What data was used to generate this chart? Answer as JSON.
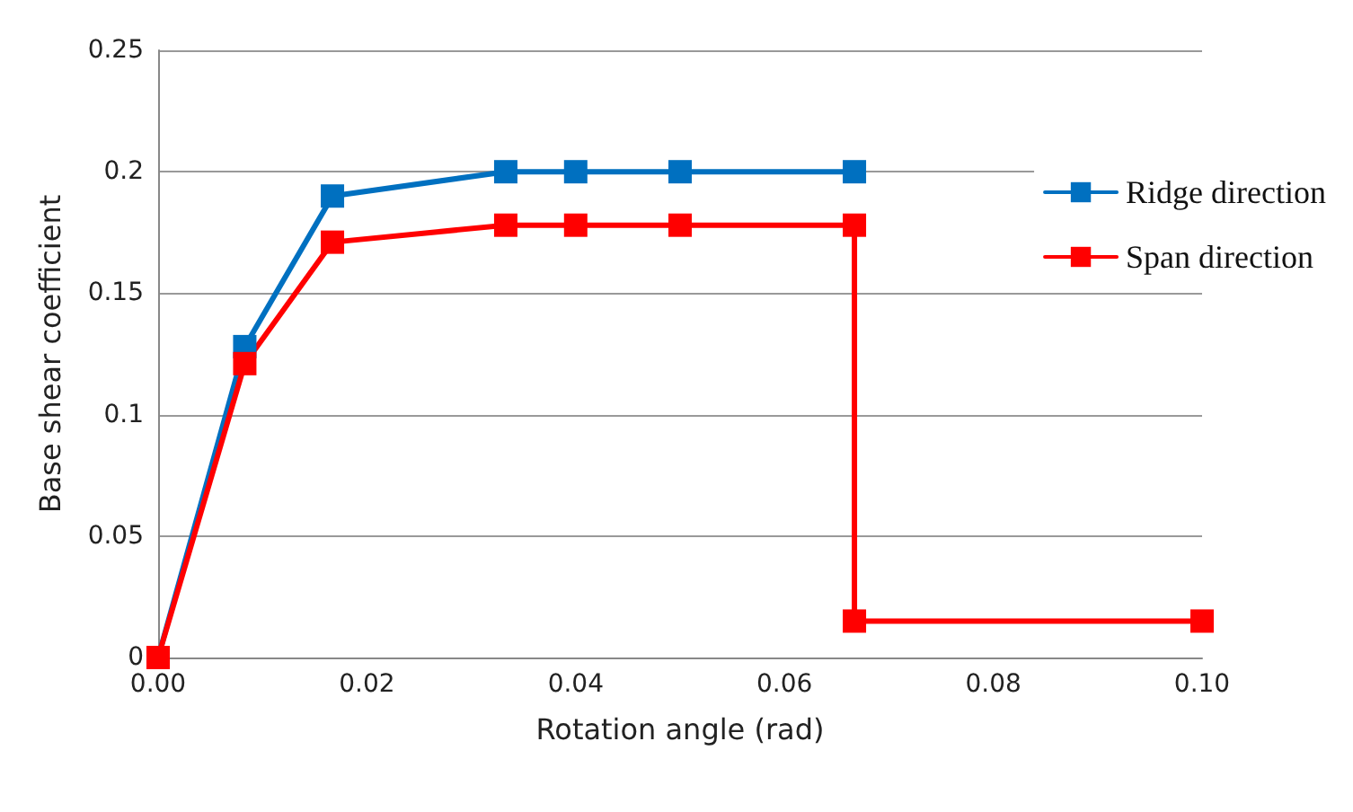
{
  "chart_data": {
    "type": "line",
    "xlabel": "Rotation angle (rad)",
    "ylabel": "Base shear coefficient",
    "series": [
      {
        "name": "Ridge direction",
        "color": "#0070c0",
        "x": [
          0,
          0.0083,
          0.0167,
          0.0333,
          0.04,
          0.05,
          0.0667
        ],
        "values": [
          0,
          0.128,
          0.19,
          0.2,
          0.2,
          0.2,
          0.2
        ]
      },
      {
        "name": "Span direction",
        "color": "#ff0000",
        "x": [
          0,
          0.0083,
          0.0167,
          0.0333,
          0.04,
          0.05,
          0.0667,
          0.0667,
          0.1
        ],
        "values": [
          0,
          0.121,
          0.171,
          0.178,
          0.178,
          0.178,
          0.178,
          0.015,
          0.015
        ]
      }
    ],
    "xlim": [
      0,
      0.1
    ],
    "xticks": [
      {
        "value": 0,
        "label": "0.00"
      },
      {
        "value": 0.02,
        "label": "0.02"
      },
      {
        "value": 0.04,
        "label": "0.04"
      },
      {
        "value": 0.06,
        "label": "0.06"
      },
      {
        "value": 0.08,
        "label": "0.08"
      },
      {
        "value": 0.1,
        "label": "0.10"
      }
    ],
    "ylim": [
      0,
      0.25
    ],
    "yticks": [
      0,
      0.05,
      0.1,
      0.15,
      0.2,
      0.25
    ],
    "grid": "y",
    "legend": "right",
    "marker": "square",
    "line_style": "solid"
  }
}
